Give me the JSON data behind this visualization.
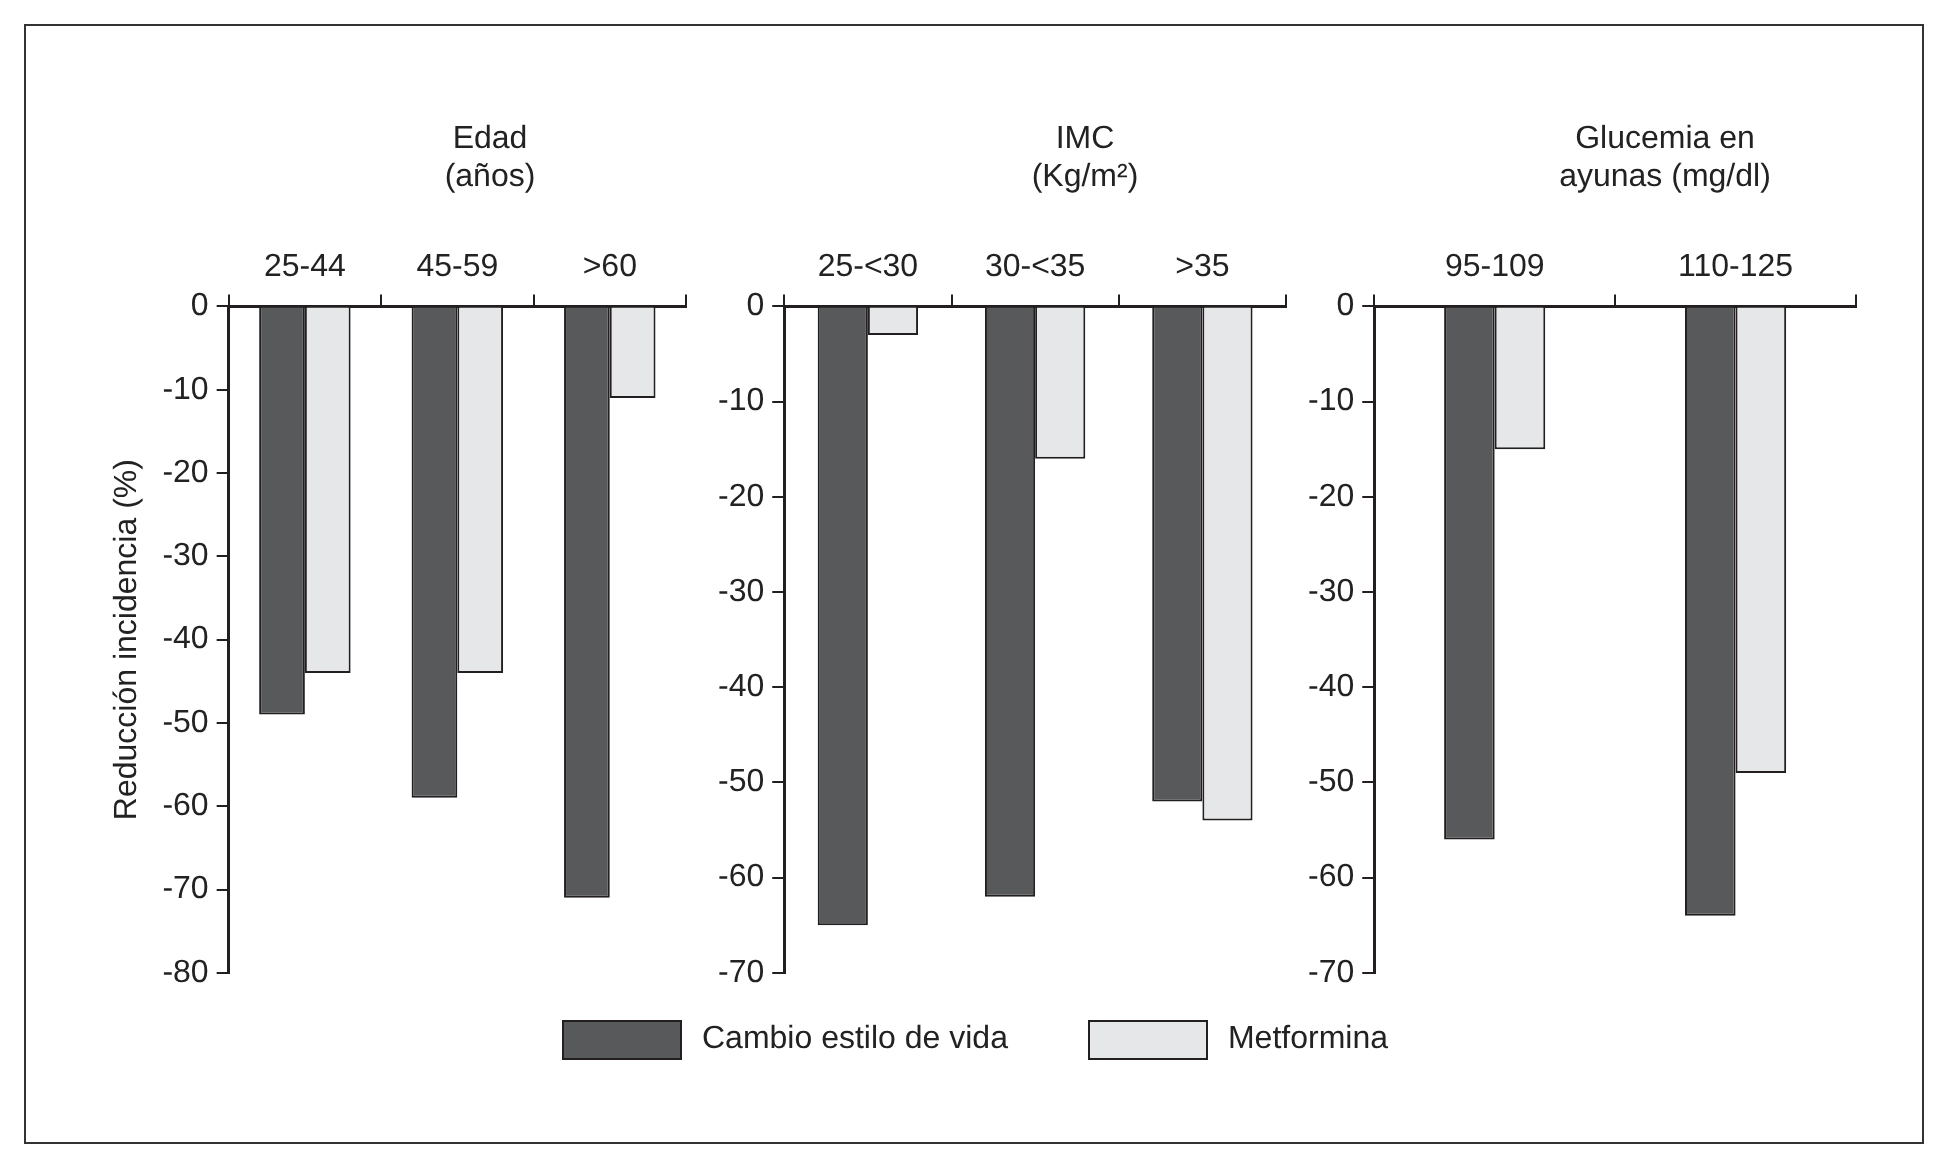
{
  "chart_data": [
    {
      "type": "bar",
      "title": "Edad\n(años)",
      "ylabel": "Reducción incidencia (%)",
      "categories": [
        "25-44",
        "45-59",
        ">60"
      ],
      "ylim": [
        -80,
        0
      ],
      "yticks": [
        0,
        -10,
        -20,
        -30,
        -40,
        -50,
        -60,
        -70,
        -80
      ],
      "legend": "bottom",
      "series": [
        {
          "name": "Cambio estilo de vida",
          "color": "#58595b",
          "values": [
            -49,
            -59,
            -71
          ]
        },
        {
          "name": "Metformina",
          "color": "#e6e7e8",
          "values": [
            -44,
            -44,
            -11
          ]
        }
      ]
    },
    {
      "type": "bar",
      "title": "IMC\n(Kg/m²)",
      "categories": [
        "25-<30",
        "30-<35",
        ">35"
      ],
      "ylim": [
        -70,
        0
      ],
      "yticks": [
        0,
        -10,
        -20,
        -30,
        -40,
        -50,
        -60,
        -70
      ],
      "series": [
        {
          "color": "#58595b",
          "values": [
            -65,
            -62,
            -52
          ]
        },
        {
          "color": "#e6e7e8",
          "values": [
            -3,
            -16,
            -54
          ]
        }
      ]
    },
    {
      "type": "bar",
      "title": "Glucemia en\nayunas (mg/dl)",
      "categories": [
        "95-109",
        "110-125"
      ],
      "ylim": [
        -70,
        0
      ],
      "yticks": [
        0,
        -10,
        -20,
        -30,
        -40,
        -50,
        -60,
        -70
      ],
      "series": [
        {
          "color": "#58595b",
          "values": [
            -56,
            -64
          ]
        },
        {
          "color": "#e6e7e8",
          "values": [
            -15,
            -49
          ]
        }
      ]
    }
  ]
}
